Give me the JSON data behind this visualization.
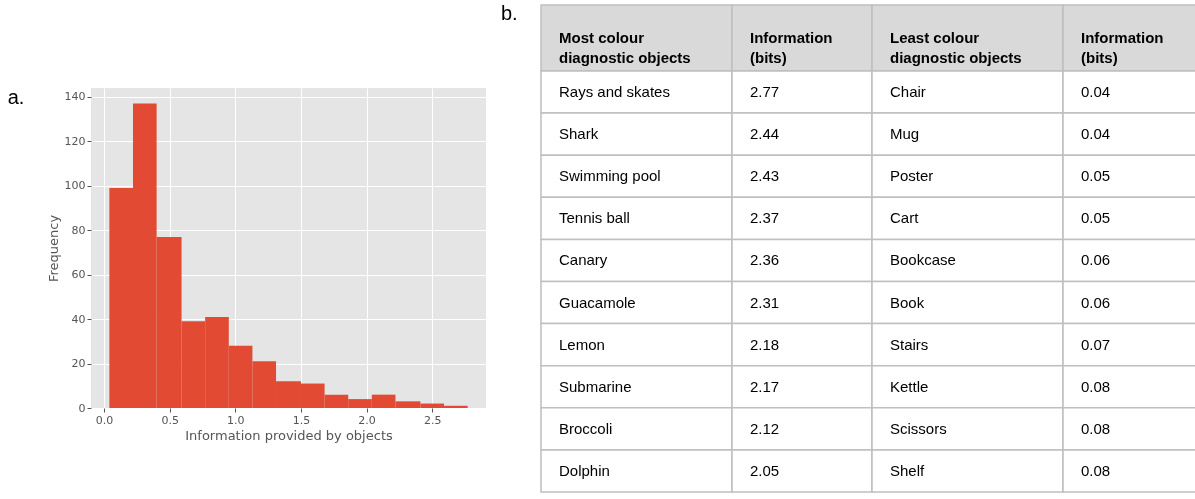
{
  "chart_data": [
    {
      "type": "histogram",
      "title": "a.",
      "xlabel": "Information provided by objects",
      "ylabel": "Frequency",
      "color": "#e24a33",
      "bins": [
        0.04,
        0.22,
        0.4,
        0.59,
        0.77,
        0.95,
        1.13,
        1.31,
        1.5,
        1.68,
        1.86,
        2.04,
        2.22,
        2.41,
        2.59,
        2.77
      ],
      "values": [
        99,
        137,
        77,
        39,
        41,
        28,
        21,
        12,
        11,
        6,
        4,
        6,
        3,
        2,
        1
      ],
      "xlim": [
        -0.1,
        2.91
      ],
      "ylim": [
        0,
        144
      ],
      "xticks": [
        {
          "value": 0,
          "label": "0.0"
        },
        {
          "value": 0.5,
          "label": "0.5"
        },
        {
          "value": 1,
          "label": "1.0"
        },
        {
          "value": 1.5,
          "label": "1.5"
        },
        {
          "value": 2,
          "label": "2.0"
        },
        {
          "value": 2.5,
          "label": "2.5"
        }
      ],
      "yticks": [
        0,
        20,
        40,
        60,
        80,
        100,
        120,
        140
      ],
      "grid": true
    },
    {
      "type": "other",
      "title": "b.",
      "categories": [
        "Most colour diagnostic objects",
        "Information (bits)",
        "Least colour diagnostic objects",
        "Information (bits)"
      ],
      "annotations": [
        "Rays and skates",
        "2.77",
        "Chair",
        "0.04",
        "Shark",
        "2.44",
        "Mug",
        "0.04",
        "Swimming pool",
        "2.43",
        "Poster",
        "0.05",
        "Tennis ball",
        "2.37",
        "Cart",
        "0.05",
        "Canary",
        "2.36",
        "Bookcase",
        "0.06",
        "Guacamole",
        "2.31",
        "Book",
        "0.06",
        "Lemon",
        "2.18",
        "Stairs",
        "0.07",
        "Submarine",
        "2.17",
        "Kettle",
        "0.08",
        "Broccoli",
        "2.12",
        "Scissors",
        "0.08",
        "Dolphin",
        "2.05",
        "Shelf",
        "0.08"
      ]
    }
  ]
}
